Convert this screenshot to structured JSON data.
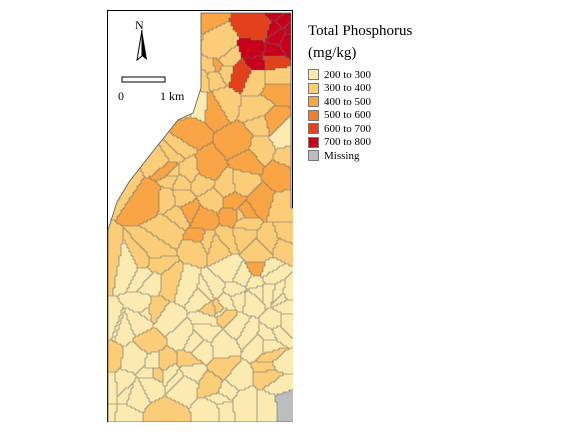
{
  "legend": {
    "title_line1": "Total Phosphorus",
    "title_line2": "(mg/kg)",
    "items": [
      {
        "label": "200 to 300",
        "color": "#FCEBB0"
      },
      {
        "label": "300 to 400",
        "color": "#FBCD78"
      },
      {
        "label": "400 to 500",
        "color": "#F9A546"
      },
      {
        "label": "500 to 600",
        "color": "#F37D2A"
      },
      {
        "label": "600 to 700",
        "color": "#E2411C"
      },
      {
        "label": "700 to 800",
        "color": "#C8001C"
      },
      {
        "label": "Missing",
        "color": "#BDBDBD"
      }
    ]
  },
  "north": {
    "label": "N"
  },
  "scale": {
    "zero_label": "0",
    "end_label": "1 km"
  }
}
